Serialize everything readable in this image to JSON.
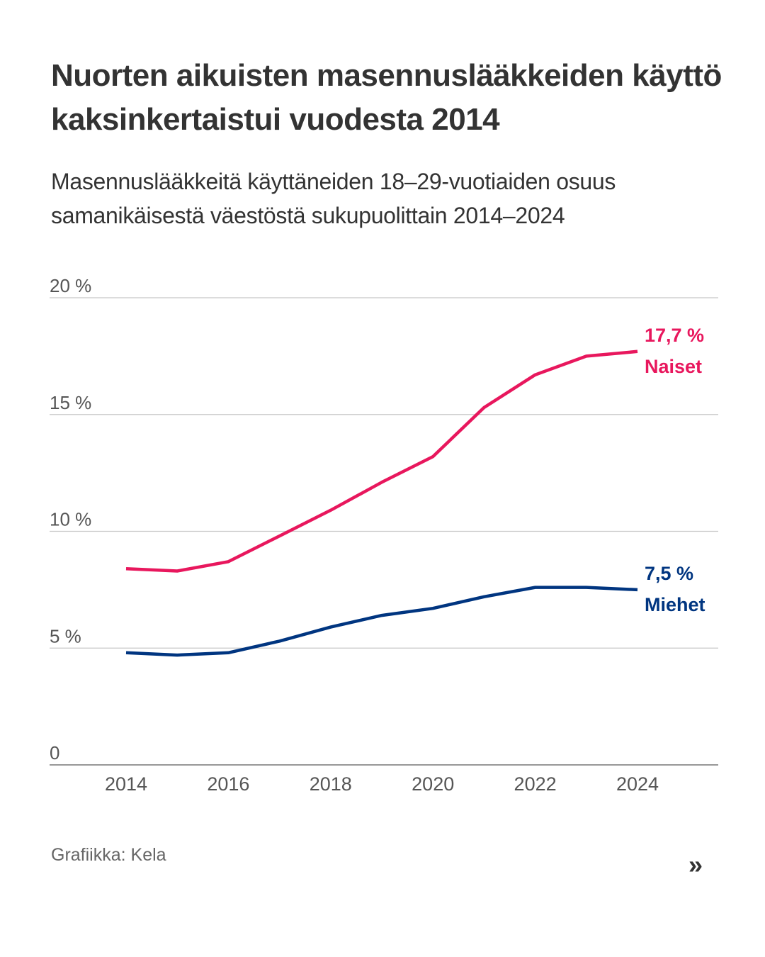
{
  "header": {
    "title": "Nuorten aikuisten masennuslääkkeiden käyttö kaksinkertaistui vuodesta 2014",
    "subtitle": "Masennuslääkkeitä käyttäneiden 18–29-vuotiaiden osuus samanikäisestä väestöstä sukupuolittain 2014–2024"
  },
  "footer": {
    "credit": "Grafiikka: Kela",
    "next_icon": "double-chevron-right-icon",
    "next_glyph": "»"
  },
  "chart_data": {
    "type": "line",
    "title": "Nuorten aikuisten masennuslääkkeiden käyttö kaksinkertaistui vuodesta 2014",
    "subtitle": "Masennuslääkkeitä käyttäneiden 18–29-vuotiaiden osuus samanikäisestä väestöstä sukupuolittain 2014–2024",
    "xlabel": "",
    "ylabel": "",
    "x": [
      2014,
      2015,
      2016,
      2017,
      2018,
      2019,
      2020,
      2021,
      2022,
      2023,
      2024
    ],
    "xlim": [
      2013,
      2025.8
    ],
    "ylim": [
      0,
      20
    ],
    "x_ticks": [
      2014,
      2016,
      2018,
      2020,
      2022,
      2024
    ],
    "x_tick_labels": [
      "2014",
      "2016",
      "2018",
      "2020",
      "2022",
      "2024"
    ],
    "y_ticks": [
      0,
      5,
      10,
      15,
      20
    ],
    "y_tick_labels": [
      "0",
      "5 %",
      "10 %",
      "15 %",
      "20 %"
    ],
    "grid": true,
    "legend": "direct-labels-right",
    "series": [
      {
        "name": "Naiset",
        "color": "#e8175d",
        "values": [
          8.4,
          8.3,
          8.7,
          9.8,
          10.9,
          12.1,
          13.2,
          15.3,
          16.7,
          17.5,
          17.7
        ],
        "end_value_label": "17,7 %",
        "end_name_label": "Naiset"
      },
      {
        "name": "Miehet",
        "color": "#003580",
        "values": [
          4.8,
          4.7,
          4.8,
          5.3,
          5.9,
          6.4,
          6.7,
          7.2,
          7.6,
          7.6,
          7.5
        ],
        "end_value_label": "7,5 %",
        "end_name_label": "Miehet"
      }
    ]
  }
}
